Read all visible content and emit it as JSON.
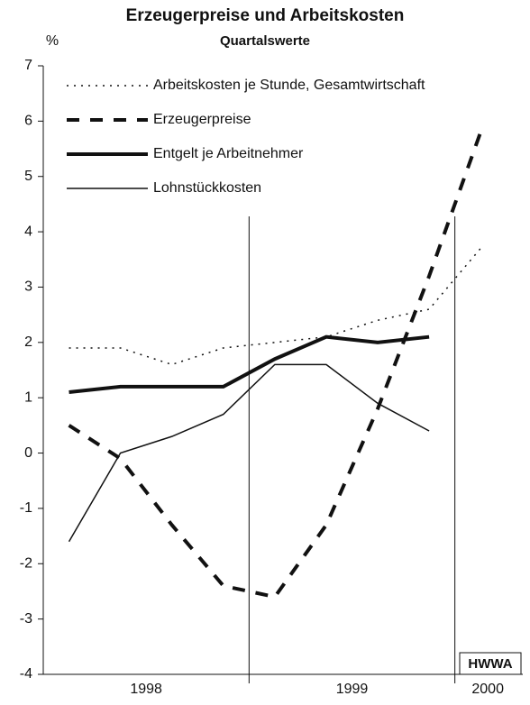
{
  "chart_data": {
    "type": "line",
    "title": "Erzeugerpreise und Arbeitskosten",
    "subtitle": "Quartalswerte",
    "y_unit": "%",
    "source": "HWWA",
    "x": [
      1998.125,
      1998.375,
      1998.625,
      1998.875,
      1999.125,
      1999.375,
      1999.625,
      1999.875,
      2000.125
    ],
    "xlim": [
      1998,
      2000.33
    ],
    "xticks": [
      {
        "value": 1998.5,
        "label": "1998"
      },
      {
        "value": 1999.5,
        "label": "1999"
      },
      {
        "value": 2000.16,
        "label": "2000"
      }
    ],
    "year_boundaries": [
      1999,
      2000
    ],
    "ylim": [
      -4,
      7
    ],
    "yticks": [
      -4,
      -3,
      -2,
      -1,
      0,
      1,
      2,
      3,
      4,
      5,
      6,
      7
    ],
    "legend": "upper left",
    "series": [
      {
        "name": "Arbeitskosten je Stunde, Gesamtwirtschaft",
        "color": "#111111",
        "linestyle": "dotted",
        "linewidth": 1.5,
        "values": [
          1.9,
          1.9,
          1.6,
          1.9,
          2.0,
          2.1,
          2.4,
          2.6,
          3.7
        ]
      },
      {
        "name": "Erzeugerpreise",
        "color": "#111111",
        "linestyle": "dashed",
        "linewidth": 4,
        "values": [
          0.5,
          -0.1,
          -1.3,
          -2.4,
          -2.6,
          -1.3,
          0.8,
          3.2,
          5.8
        ]
      },
      {
        "name": "Entgelt je Arbeitnehmer",
        "color": "#111111",
        "linestyle": "solid",
        "linewidth": 4,
        "values": [
          1.1,
          1.2,
          1.2,
          1.2,
          1.7,
          2.1,
          2.0,
          2.1,
          null
        ]
      },
      {
        "name": "Lohnstückkosten",
        "color": "#111111",
        "linestyle": "solid",
        "linewidth": 1.5,
        "values": [
          -1.6,
          0.0,
          0.3,
          0.7,
          1.6,
          1.6,
          0.9,
          0.4,
          null
        ]
      }
    ]
  }
}
